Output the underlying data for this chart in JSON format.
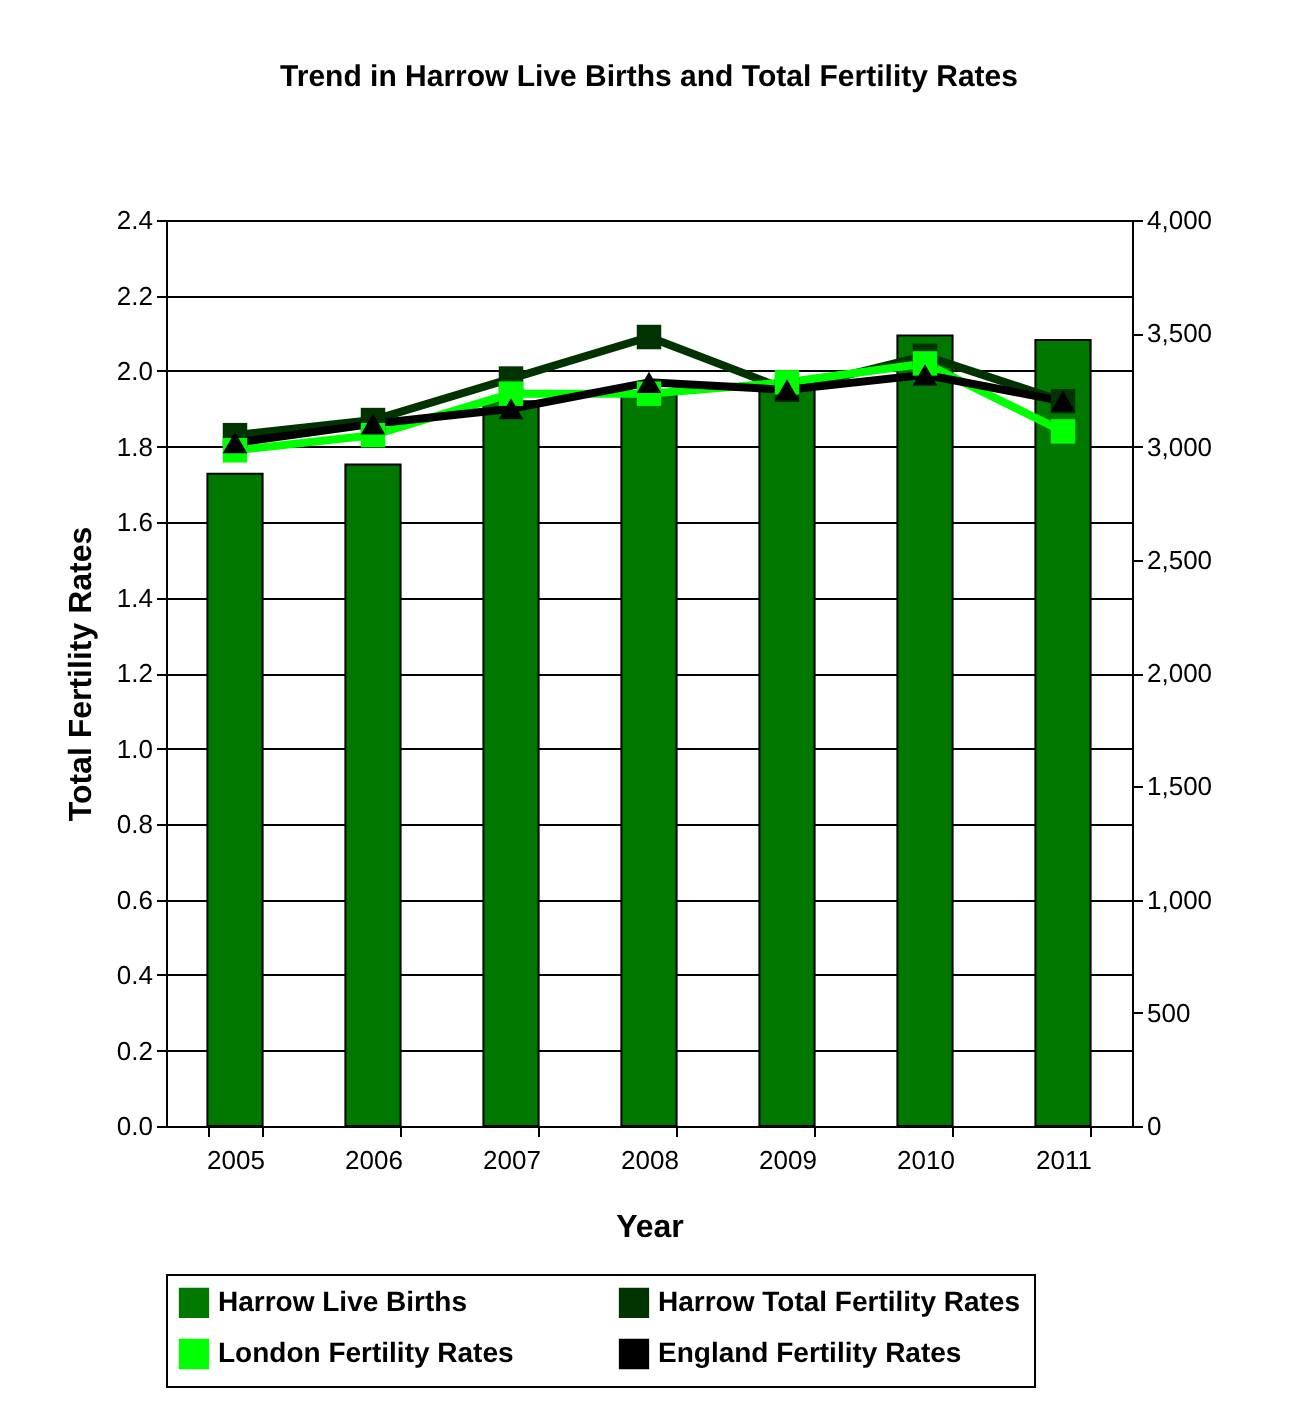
{
  "chart_data": {
    "type": "bar",
    "title": "Trend in Harrow Live Births  and Total Fertility Rates",
    "xlabel": "Year",
    "ylabel": "Total Fertility Rates",
    "categories": [
      "2005",
      "2006",
      "2007",
      "2008",
      "2009",
      "2010",
      "2011"
    ],
    "series": [
      {
        "name": "Harrow Live Births",
        "axis": "y2",
        "color": "#007800",
        "values": [
          2880,
          2920,
          3200,
          3230,
          3260,
          3490,
          3470
        ]
      },
      {
        "name": "Harrow Total Fertility Rates",
        "type": "line",
        "marker": "square",
        "color": "#003300",
        "values": [
          1.83,
          1.87,
          1.98,
          2.09,
          1.95,
          2.04,
          1.92
        ]
      },
      {
        "name": "London Fertility Rates",
        "type": "line",
        "marker": "square",
        "color": "#00ff00",
        "values": [
          1.79,
          1.83,
          1.94,
          1.94,
          1.97,
          2.02,
          1.84
        ]
      },
      {
        "name": "England Fertility Rates",
        "type": "line",
        "marker": "triangle",
        "color": "#000000",
        "values": [
          1.81,
          1.86,
          1.9,
          1.97,
          1.95,
          1.99,
          1.92
        ]
      }
    ],
    "ylim": [
      0,
      2.4
    ],
    "yticks": [
      {
        "value": 0,
        "label": "0.0"
      },
      {
        "value": 0.2,
        "label": "0.2"
      },
      {
        "value": 0.4,
        "label": "0.4"
      },
      {
        "value": 0.6,
        "label": "0.6"
      },
      {
        "value": 0.8,
        "label": "0.8"
      },
      {
        "value": 1,
        "label": "1.0"
      },
      {
        "value": 1.2,
        "label": "1.2"
      },
      {
        "value": 1.4,
        "label": "1.4"
      },
      {
        "value": 1.6,
        "label": "1.6"
      },
      {
        "value": 1.8,
        "label": "1.8"
      },
      {
        "value": 2,
        "label": "2.0"
      },
      {
        "value": 2.2,
        "label": "2.2"
      },
      {
        "value": 2.4,
        "label": "2.4"
      }
    ],
    "y2lim": [
      0,
      4000
    ],
    "y2ticks": [
      0,
      500,
      {
        "value": 1000,
        "label": "1,000"
      },
      {
        "value": 1500,
        "label": "1,500"
      },
      {
        "value": 2000,
        "label": "2,000"
      },
      {
        "value": 2500,
        "label": "2,500"
      },
      {
        "value": 3000,
        "label": "3,000"
      },
      {
        "value": 3500,
        "label": "3,500"
      },
      {
        "value": 4000,
        "label": "4,000"
      }
    ],
    "grid": "y",
    "legend": "bottom"
  }
}
